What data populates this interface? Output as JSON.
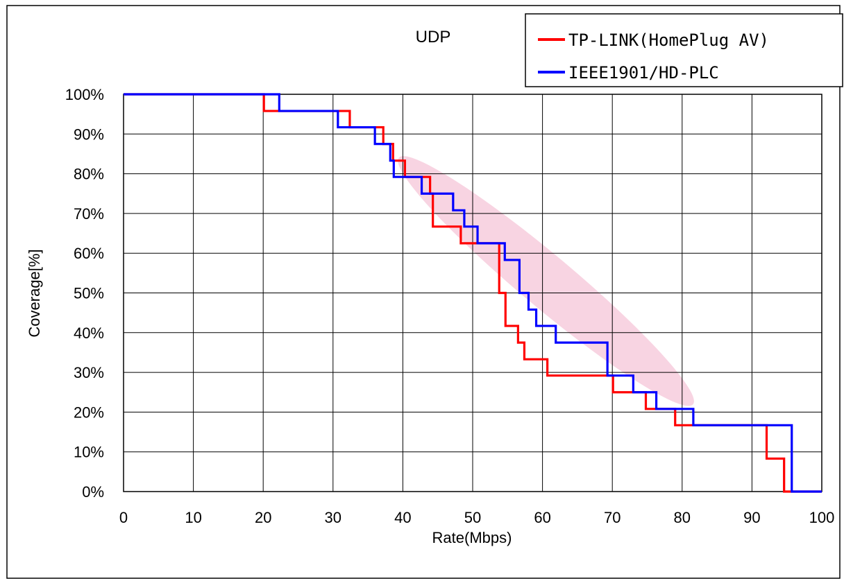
{
  "chart_data": {
    "type": "line",
    "title": "UDP",
    "xlabel": "Rate(Mbps)",
    "ylabel": "Coverage[%]",
    "xlim": [
      0,
      100
    ],
    "ylim": [
      0,
      100
    ],
    "x_ticks": [
      0,
      10,
      20,
      30,
      40,
      50,
      60,
      70,
      80,
      90,
      100
    ],
    "y_ticks": [
      0,
      10,
      20,
      30,
      40,
      50,
      60,
      70,
      80,
      90,
      100
    ],
    "x_tick_labels": [
      "0",
      "10",
      "20",
      "30",
      "40",
      "50",
      "60",
      "70",
      "80",
      "90",
      "100"
    ],
    "y_tick_labels": [
      "0%",
      "10%",
      "20%",
      "30%",
      "40%",
      "50%",
      "60%",
      "70%",
      "80%",
      "90%",
      "100%"
    ],
    "grid": true,
    "legend_position": "top-right",
    "series": [
      {
        "name": "TP-LINK(HomePlug AV)",
        "color": "#ff0000",
        "step": true,
        "x": [
          0,
          20.1,
          30.3,
          32.4,
          35.8,
          37.2,
          38.6,
          40.3,
          41.7,
          43.9,
          44.3,
          47.8,
          48.3,
          52.3,
          53.8,
          54.7,
          56.5,
          57.4,
          58.7,
          60.7,
          69.0,
          70.1,
          74.8,
          76.0,
          79.0,
          81.2,
          92.1,
          94.6,
          100
        ],
        "y": [
          100,
          95.8,
          95.8,
          91.7,
          91.7,
          87.5,
          83.3,
          79.2,
          79.2,
          75.0,
          66.7,
          66.7,
          62.5,
          62.5,
          50.0,
          41.7,
          37.5,
          33.3,
          33.3,
          29.2,
          29.2,
          25.0,
          20.8,
          20.8,
          16.7,
          16.7,
          8.3,
          0,
          0
        ]
      },
      {
        "name": "IEEE1901/HD-PLC",
        "color": "#0000ff",
        "step": true,
        "x": [
          0,
          22.3,
          30.7,
          36.0,
          38.2,
          38.7,
          40.8,
          42.7,
          45.3,
          47.2,
          48.8,
          50.7,
          52.2,
          54.6,
          56.7,
          58.0,
          59.1,
          61.9,
          69.3,
          73.0,
          76.3,
          78.6,
          81.6,
          95.7,
          100
        ],
        "y": [
          100,
          95.8,
          91.7,
          87.5,
          83.3,
          79.2,
          79.2,
          75.0,
          75.0,
          70.8,
          66.7,
          62.5,
          62.5,
          58.3,
          50.0,
          45.8,
          41.7,
          37.5,
          29.2,
          25.0,
          20.8,
          20.8,
          16.7,
          0,
          0
        ]
      }
    ],
    "highlight_ellipse": {
      "color": "#e76f9e",
      "center": [
        60.5,
        53
      ],
      "semi_axis_data": [
        27.5,
        25
      ],
      "rotation_deg": 40
    }
  }
}
